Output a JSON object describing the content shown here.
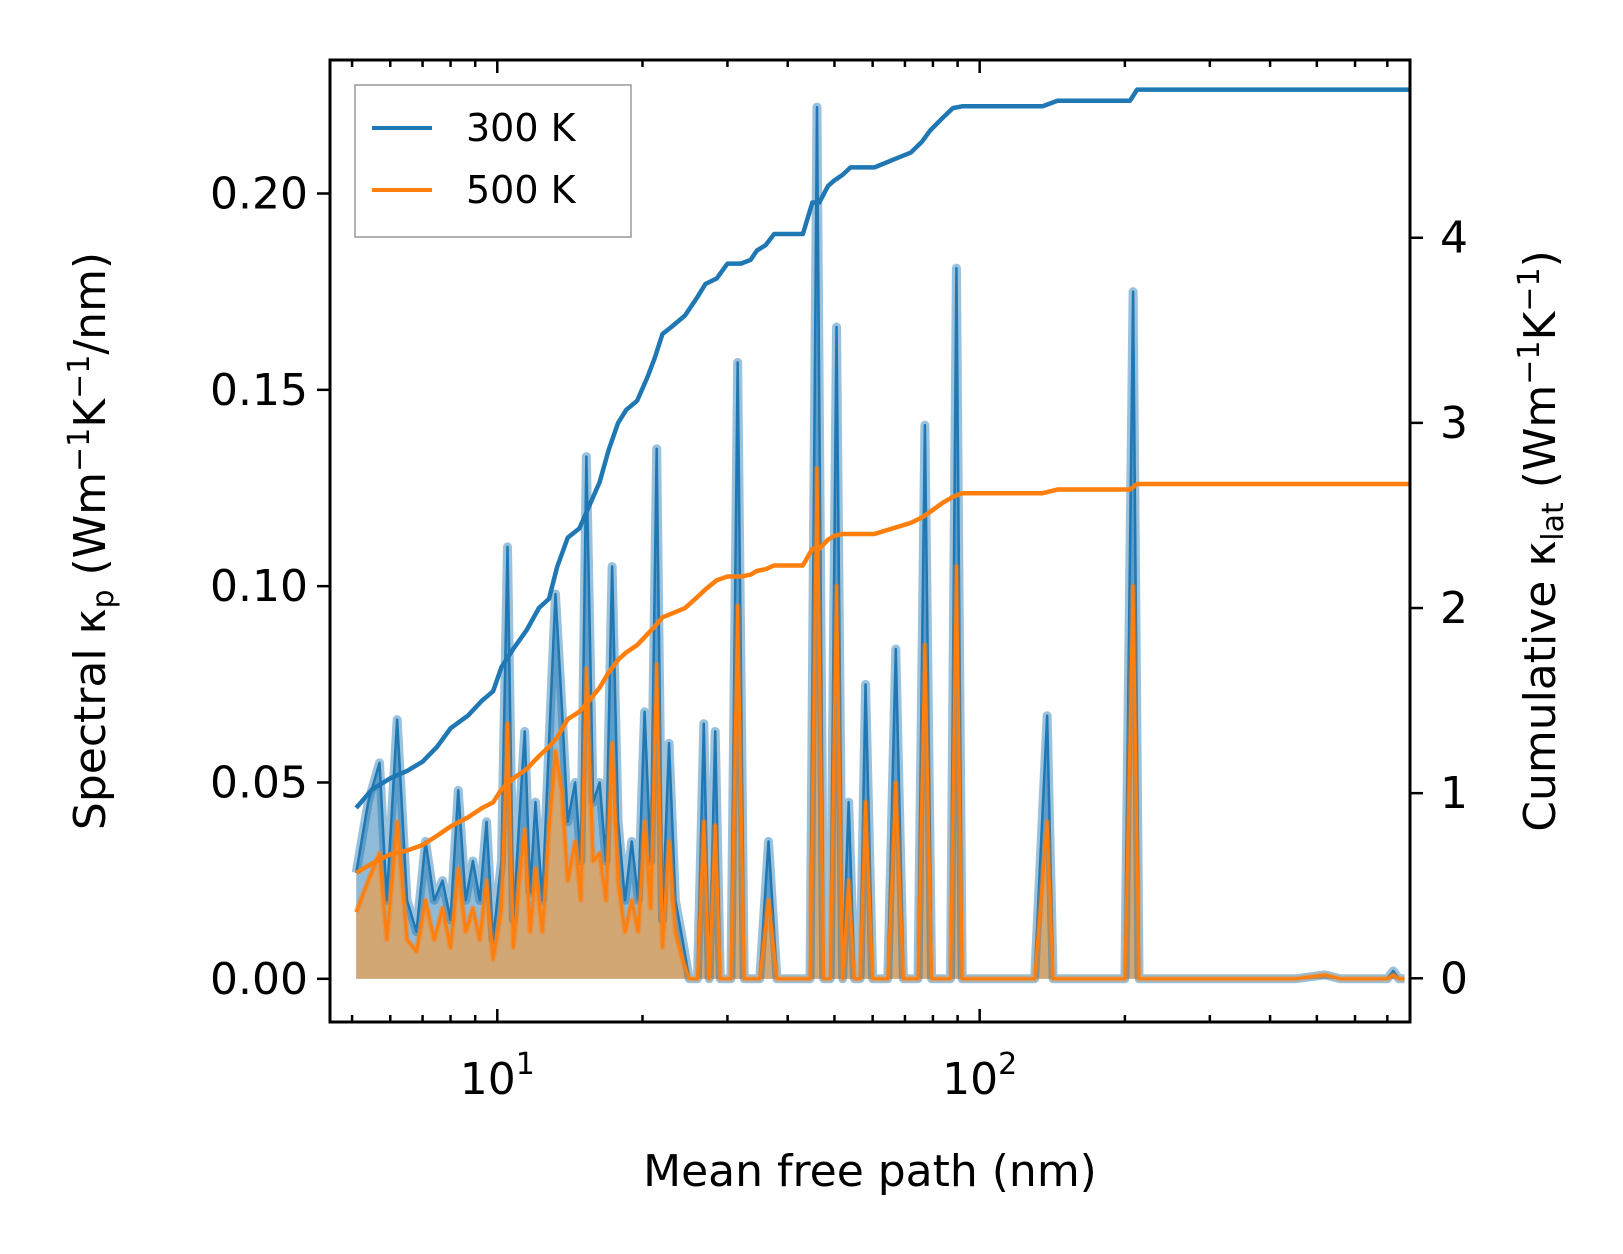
{
  "chart_data": {
    "type": "line",
    "xscale": "log",
    "xlabel": "Mean free path (nm)",
    "ylabel_left": "Spectral κp (Wm−1K−1/nm)",
    "ylabel_right": "Cumulative κlat (Wm−1K−1)",
    "ylabel_left_parts": {
      "a": "Spectral κ",
      "b": "p",
      "c": " (Wm",
      "d": "−1",
      "e": "K",
      "f": "−1",
      "g": "/nm)"
    },
    "ylabel_right_parts": {
      "a": "Cumulative κ",
      "b": "lat",
      "c": " (Wm",
      "d": "−1",
      "e": "K",
      "f": "−1",
      "g": ")"
    },
    "xlim": [
      4.5,
      780
    ],
    "ylim_left": [
      -0.011,
      0.234
    ],
    "ylim_right": [
      -0.236,
      4.96
    ],
    "x_ticks": [
      {
        "value": 10,
        "base": "10",
        "exp": "1"
      },
      {
        "value": 100,
        "base": "10",
        "exp": "2"
      }
    ],
    "y_ticks_left": [
      "0.00",
      "0.05",
      "0.10",
      "0.15",
      "0.20"
    ],
    "y_ticks_right": [
      "0",
      "1",
      "2",
      "3",
      "4"
    ],
    "legend": {
      "position": "top-left",
      "entries": [
        "300 K",
        "500 K"
      ]
    },
    "colors": {
      "s300": "#1f77b4",
      "s500": "#ff7f0e",
      "fill300": "#1f77b4",
      "fill500": "#e8a050"
    },
    "spectral": {
      "x": [
        5.1,
        5.4,
        5.7,
        5.9,
        6.2,
        6.5,
        6.8,
        7.1,
        7.4,
        7.7,
        8.0,
        8.3,
        8.6,
        8.9,
        9.2,
        9.5,
        9.8,
        10.2,
        10.5,
        10.8,
        11.1,
        11.4,
        11.7,
        12.0,
        12.4,
        12.8,
        13.2,
        13.6,
        14.0,
        14.5,
        14.9,
        15.3,
        15.8,
        16.3,
        16.8,
        17.3,
        17.8,
        18.4,
        19.0,
        19.6,
        20.2,
        20.8,
        21.4,
        22.0,
        22.7,
        23.4,
        24.2,
        25.0,
        26.0,
        26.8,
        27.5,
        28.3,
        29.0,
        30.5,
        31.5,
        32.5,
        33.5,
        35.0,
        36.5,
        38.0,
        39.5,
        41.0,
        43.0,
        44.5,
        46.0,
        47.5,
        49.0,
        50.5,
        52.0,
        53.5,
        55.0,
        56.5,
        58.0,
        60.0,
        62.0,
        64.5,
        67.0,
        69.5,
        72.0,
        74.5,
        77.0,
        79.5,
        82.0,
        84.5,
        87.0,
        89.5,
        92.0,
        95.0,
        98.0,
        102,
        130,
        138,
        142,
        147,
        152,
        200,
        208,
        214,
        220,
        226,
        300,
        450,
        520,
        560,
        650,
        700,
        720,
        740,
        760
      ],
      "y300": [
        0.027,
        0.045,
        0.055,
        0.02,
        0.066,
        0.02,
        0.012,
        0.035,
        0.02,
        0.025,
        0.015,
        0.048,
        0.02,
        0.03,
        0.02,
        0.04,
        0.01,
        0.03,
        0.11,
        0.015,
        0.04,
        0.063,
        0.022,
        0.045,
        0.02,
        0.06,
        0.098,
        0.07,
        0.04,
        0.05,
        0.03,
        0.133,
        0.045,
        0.05,
        0.03,
        0.105,
        0.04,
        0.02,
        0.035,
        0.02,
        0.068,
        0.03,
        0.135,
        0.015,
        0.06,
        0.02,
        0.01,
        0.0,
        0.0,
        0.065,
        0.0,
        0.063,
        0.0,
        0.0,
        0.157,
        0.0,
        0.0,
        0.0,
        0.035,
        0.0,
        0.0,
        0.0,
        0.0,
        0.0,
        0.222,
        0.0,
        0.0,
        0.166,
        0.0,
        0.045,
        0.0,
        0.0,
        0.075,
        0.0,
        0.0,
        0.0,
        0.084,
        0.0,
        0.0,
        0.0,
        0.141,
        0.0,
        0.0,
        0.0,
        0.0,
        0.181,
        0.0,
        0.0,
        0.0,
        0.0,
        0.0,
        0.067,
        0.0,
        0.0,
        0.0,
        0.0,
        0.175,
        0.0,
        0.0,
        0.0,
        0.0,
        0.0,
        0.001,
        0.0,
        0.0,
        0.0,
        0.002,
        0.0,
        0.0
      ],
      "y500": [
        0.017,
        0.025,
        0.032,
        0.01,
        0.04,
        0.01,
        0.007,
        0.02,
        0.01,
        0.018,
        0.008,
        0.028,
        0.012,
        0.018,
        0.01,
        0.025,
        0.005,
        0.018,
        0.065,
        0.008,
        0.025,
        0.038,
        0.012,
        0.028,
        0.012,
        0.038,
        0.058,
        0.048,
        0.025,
        0.035,
        0.02,
        0.079,
        0.03,
        0.032,
        0.02,
        0.06,
        0.025,
        0.012,
        0.02,
        0.012,
        0.04,
        0.018,
        0.08,
        0.008,
        0.035,
        0.012,
        0.005,
        0.0,
        0.0,
        0.04,
        0.0,
        0.039,
        0.0,
        0.0,
        0.095,
        0.0,
        0.0,
        0.0,
        0.02,
        0.0,
        0.0,
        0.0,
        0.0,
        0.0,
        0.13,
        0.0,
        0.0,
        0.1,
        0.0,
        0.025,
        0.0,
        0.0,
        0.045,
        0.0,
        0.0,
        0.0,
        0.05,
        0.0,
        0.0,
        0.0,
        0.085,
        0.0,
        0.0,
        0.0,
        0.0,
        0.105,
        0.0,
        0.0,
        0.0,
        0.0,
        0.0,
        0.04,
        0.0,
        0.0,
        0.0,
        0.0,
        0.1,
        0.0,
        0.0,
        0.0,
        0.0,
        0.0,
        0.001,
        0.0,
        0.0,
        0.0,
        0.001,
        0.0,
        0.0
      ]
    },
    "cumulative_300": {
      "x": [
        5.1,
        5.5,
        6.0,
        6.5,
        7.0,
        7.5,
        8.0,
        8.7,
        9.3,
        9.8,
        10.2,
        10.8,
        11.5,
        12.2,
        12.8,
        13.3,
        14.0,
        14.8,
        15.5,
        16.3,
        17.0,
        17.8,
        18.5,
        19.5,
        20.5,
        21.2,
        22.0,
        23.0,
        24.5,
        26.0,
        27.0,
        28.5,
        30.0,
        32.0,
        33.5,
        34.5,
        36.0,
        37.5,
        39.0,
        41.0,
        43.0,
        45.0,
        46.5,
        48.5,
        50.0,
        52.0,
        54.0,
        56.0,
        58.0,
        60.5,
        66.0,
        72.0,
        76.0,
        79.0,
        84.0,
        88.0,
        92.0,
        96.0,
        110,
        135,
        145,
        160,
        205,
        212,
        230,
        300,
        500,
        780
      ],
      "y": [
        0.92,
        1.02,
        1.08,
        1.12,
        1.17,
        1.25,
        1.35,
        1.42,
        1.5,
        1.55,
        1.68,
        1.78,
        1.88,
        2.0,
        2.05,
        2.22,
        2.38,
        2.43,
        2.55,
        2.68,
        2.85,
        3.0,
        3.07,
        3.12,
        3.25,
        3.35,
        3.48,
        3.52,
        3.58,
        3.68,
        3.75,
        3.78,
        3.86,
        3.86,
        3.88,
        3.93,
        3.96,
        4.02,
        4.02,
        4.02,
        4.02,
        4.19,
        4.19,
        4.28,
        4.31,
        4.34,
        4.38,
        4.38,
        4.38,
        4.38,
        4.42,
        4.46,
        4.52,
        4.58,
        4.65,
        4.7,
        4.71,
        4.71,
        4.71,
        4.71,
        4.74,
        4.74,
        4.74,
        4.8,
        4.8,
        4.8,
        4.8,
        4.8
      ]
    },
    "cumulative_500": {
      "x": [
        5.1,
        5.5,
        6.0,
        6.5,
        7.0,
        7.5,
        8.0,
        8.7,
        9.3,
        9.8,
        10.2,
        10.8,
        11.5,
        12.2,
        12.8,
        13.3,
        14.0,
        14.8,
        15.5,
        16.3,
        17.0,
        17.8,
        18.5,
        19.5,
        20.5,
        21.2,
        22.0,
        23.0,
        24.5,
        26.0,
        27.0,
        28.5,
        30.0,
        32.0,
        33.5,
        34.5,
        36.0,
        37.5,
        39.0,
        41.0,
        43.0,
        45.0,
        46.5,
        48.5,
        50.0,
        52.0,
        54.0,
        56.0,
        58.0,
        60.5,
        66.0,
        72.0,
        76.0,
        79.0,
        84.0,
        88.0,
        92.0,
        96.0,
        110,
        135,
        145,
        160,
        205,
        212,
        230,
        300,
        500,
        780
      ],
      "y": [
        0.57,
        0.62,
        0.67,
        0.69,
        0.72,
        0.77,
        0.82,
        0.87,
        0.92,
        0.95,
        1.02,
        1.08,
        1.13,
        1.2,
        1.25,
        1.3,
        1.4,
        1.44,
        1.5,
        1.57,
        1.65,
        1.72,
        1.76,
        1.8,
        1.86,
        1.9,
        1.95,
        1.97,
        2.0,
        2.06,
        2.1,
        2.15,
        2.17,
        2.17,
        2.18,
        2.2,
        2.21,
        2.23,
        2.23,
        2.23,
        2.23,
        2.32,
        2.32,
        2.37,
        2.39,
        2.4,
        2.4,
        2.4,
        2.4,
        2.4,
        2.43,
        2.46,
        2.49,
        2.52,
        2.57,
        2.6,
        2.62,
        2.62,
        2.62,
        2.62,
        2.64,
        2.64,
        2.64,
        2.67,
        2.67,
        2.67,
        2.67,
        2.67
      ]
    }
  }
}
